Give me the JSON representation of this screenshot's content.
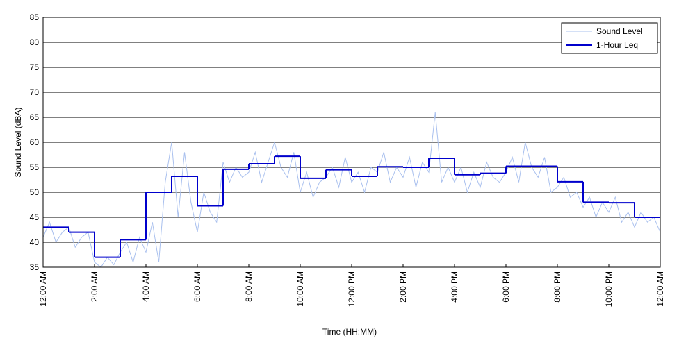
{
  "chart_data": {
    "type": "line",
    "xlabel": "Time (HH:MM)",
    "ylabel": "Sound Level (dBA)",
    "xlim": [
      0,
      24
    ],
    "ylim": [
      35,
      85
    ],
    "xticks": [
      {
        "value": 0,
        "label": "12:00 AM"
      },
      {
        "value": 2,
        "label": "2:00 AM"
      },
      {
        "value": 4,
        "label": "4:00 AM"
      },
      {
        "value": 6,
        "label": "6:00 AM"
      },
      {
        "value": 8,
        "label": "8:00 AM"
      },
      {
        "value": 10,
        "label": "10:00 AM"
      },
      {
        "value": 12,
        "label": "12:00 PM"
      },
      {
        "value": 14,
        "label": "2:00 PM"
      },
      {
        "value": 16,
        "label": "4:00 PM"
      },
      {
        "value": 18,
        "label": "6:00 PM"
      },
      {
        "value": 20,
        "label": "8:00 PM"
      },
      {
        "value": 22,
        "label": "10:00 PM"
      },
      {
        "value": 24,
        "label": "12:00 AM"
      }
    ],
    "yticks": [
      35,
      40,
      45,
      50,
      55,
      60,
      65,
      70,
      75,
      80,
      85
    ],
    "grid": true,
    "legend": "upper right",
    "series": [
      {
        "name": "Sound Level",
        "color": "#a9c0ee",
        "style": "line",
        "x": [
          0,
          0.25,
          0.5,
          0.75,
          1,
          1.25,
          1.5,
          1.75,
          2,
          2.25,
          2.5,
          2.75,
          3,
          3.25,
          3.5,
          3.75,
          4,
          4.25,
          4.5,
          4.75,
          5,
          5.25,
          5.5,
          5.75,
          6,
          6.25,
          6.5,
          6.75,
          7,
          7.25,
          7.5,
          7.75,
          8,
          8.25,
          8.5,
          8.75,
          9,
          9.25,
          9.5,
          9.75,
          10,
          10.25,
          10.5,
          10.75,
          11,
          11.25,
          11.5,
          11.75,
          12,
          12.25,
          12.5,
          12.75,
          13,
          13.25,
          13.5,
          13.75,
          14,
          14.25,
          14.5,
          14.75,
          15,
          15.25,
          15.5,
          15.75,
          16,
          16.25,
          16.5,
          16.75,
          17,
          17.25,
          17.5,
          17.75,
          18,
          18.25,
          18.5,
          18.75,
          19,
          19.25,
          19.5,
          19.75,
          20,
          20.25,
          20.5,
          20.75,
          21,
          21.25,
          21.5,
          21.75,
          22,
          22.25,
          22.5,
          22.75,
          23,
          23.25,
          23.5,
          23.75,
          24
        ],
        "values": [
          41,
          44,
          40,
          42,
          43,
          39,
          41,
          42,
          36,
          35,
          37,
          35.5,
          38,
          40,
          36,
          41,
          38,
          44,
          36,
          52,
          60,
          45,
          58,
          48,
          42,
          50,
          46,
          44,
          56,
          52,
          55,
          53,
          54,
          58,
          52,
          56,
          60,
          55,
          53,
          58,
          50,
          54,
          49,
          52,
          53,
          55,
          51,
          57,
          52,
          54,
          50,
          55,
          54,
          58,
          52,
          55,
          53,
          57,
          51,
          56,
          54,
          66,
          52,
          55,
          52,
          55,
          50,
          54,
          51,
          56,
          53,
          52,
          54,
          57,
          52,
          60,
          55,
          53,
          57,
          50,
          51,
          53,
          49,
          50,
          47,
          49,
          45,
          48,
          46,
          49,
          44,
          46,
          43,
          46,
          44,
          45,
          42
        ]
      },
      {
        "name": "1-Hour Leq",
        "color": "#0000cc",
        "style": "step",
        "x": [
          0,
          1,
          2,
          3,
          4,
          5,
          6,
          7,
          8,
          9,
          10,
          11,
          12,
          13,
          14,
          15,
          16,
          17,
          18,
          19,
          20,
          21,
          22,
          23
        ],
        "values": [
          43,
          42,
          37,
          40.5,
          50,
          53.2,
          47.3,
          54.6,
          55.7,
          57.2,
          52.8,
          54.5,
          53.2,
          55.1,
          55,
          56.8,
          53.5,
          53.8,
          55.2,
          55.2,
          52.1,
          48,
          47.9,
          45
        ]
      }
    ]
  }
}
